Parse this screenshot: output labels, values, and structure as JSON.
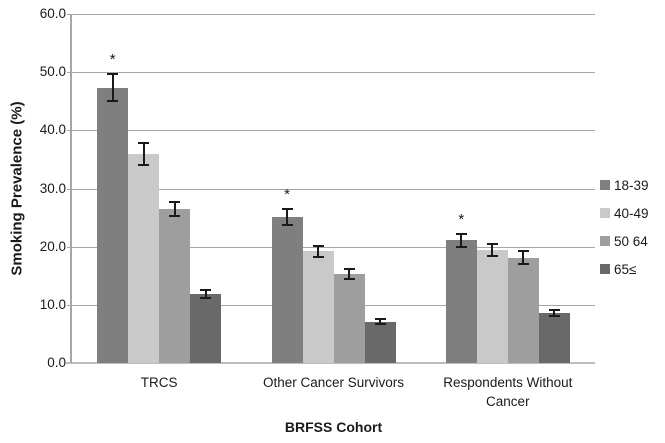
{
  "chart_data": {
    "type": "bar",
    "title": "",
    "xlabel": "BRFSS Cohort",
    "ylabel": "Smoking Prevalence (%)",
    "ylim": [
      0,
      60
    ],
    "ytick_step": 10,
    "ytick_decimals": 1,
    "grid": true,
    "legend_position": "right",
    "significance_marker": "*",
    "categories": [
      "TRCS",
      "Other Cancer Survivors",
      "Respondents Without Cancer"
    ],
    "series": [
      {
        "name": "18-39",
        "color": "#7f7f7f",
        "values": [
          47.3,
          25.1,
          21.1
        ],
        "errors": [
          2.3,
          1.4,
          1.1
        ],
        "significant": [
          true,
          true,
          true
        ]
      },
      {
        "name": "40-49",
        "color": "#c9c9c9",
        "values": [
          35.9,
          19.2,
          19.4
        ],
        "errors": [
          1.9,
          1.0,
          1.0
        ],
        "significant": [
          false,
          false,
          false
        ]
      },
      {
        "name": "50 64",
        "color": "#9e9e9e",
        "values": [
          26.5,
          15.3,
          18.1
        ],
        "errors": [
          1.2,
          0.9,
          1.1
        ],
        "significant": [
          false,
          false,
          false
        ]
      },
      {
        "name": "65≤",
        "color": "#696969",
        "values": [
          11.9,
          7.1,
          8.6
        ],
        "errors": [
          0.7,
          0.4,
          0.5
        ],
        "significant": [
          false,
          false,
          false
        ]
      }
    ],
    "colors": {
      "gridline": "#a6a6a6",
      "baseline": "#bdbdbd",
      "axis": "#a6a6a6",
      "error_bar": "#1a1a1a",
      "text": "#1a1a1a",
      "background": "#ffffff"
    }
  }
}
